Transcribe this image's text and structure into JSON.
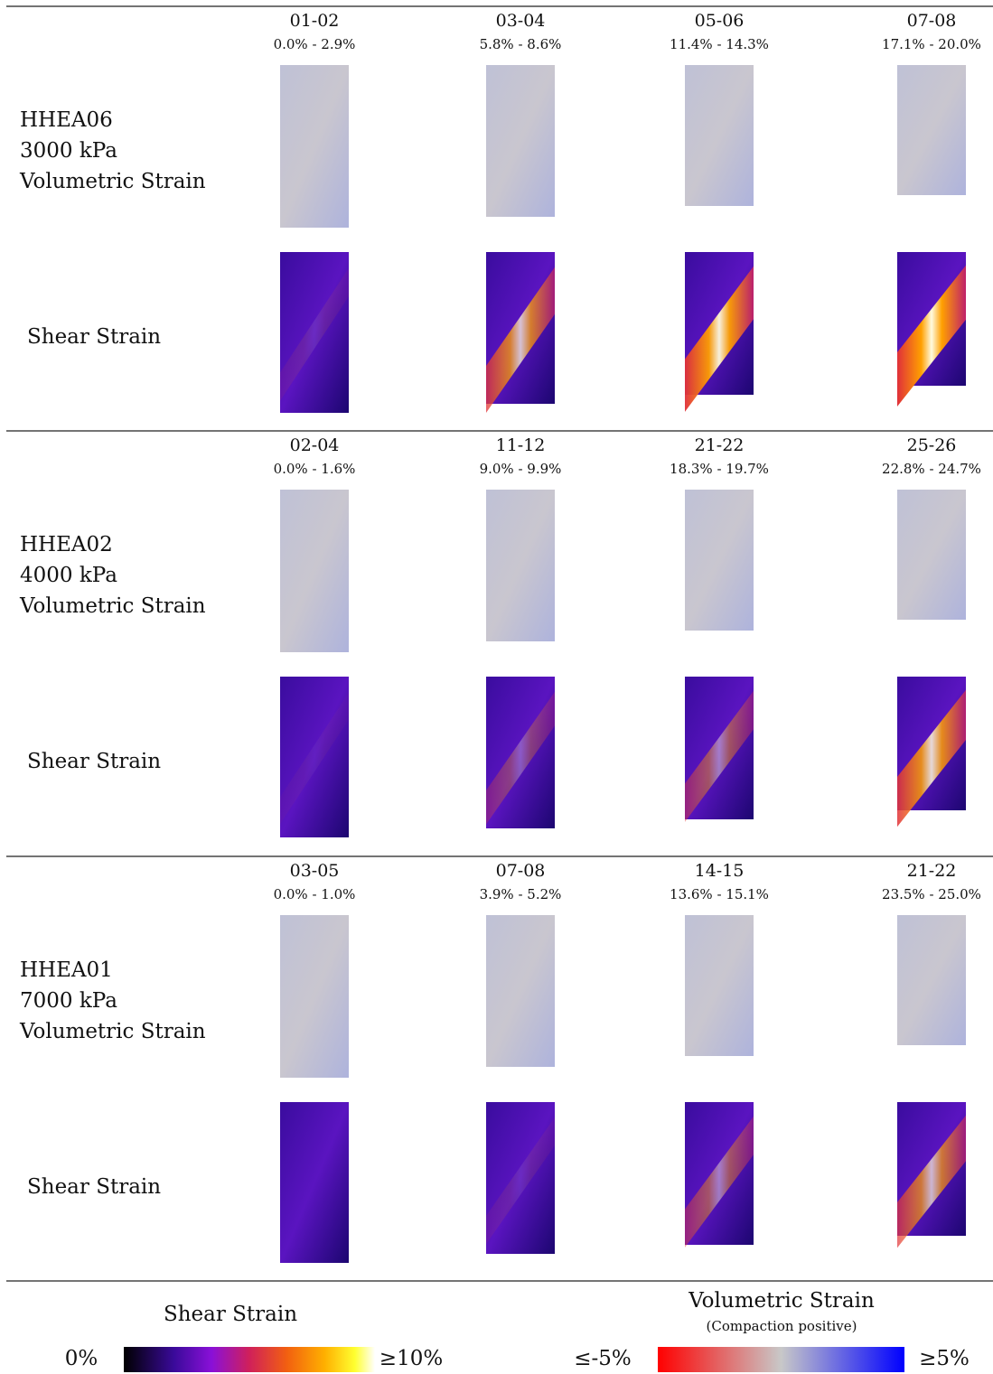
{
  "groups": [
    {
      "specimen": "HHEA06",
      "pressure": "3000 kPa",
      "volumetric_label": "Volumetric Strain",
      "shear_label": "Shear Strain",
      "columns": [
        {
          "increment": "01-02",
          "range": "0.0% - 2.9%"
        },
        {
          "increment": "03-04",
          "range": "5.8% - 8.6%"
        },
        {
          "increment": "05-06",
          "range": "11.4% - 14.3%"
        },
        {
          "increment": "07-08",
          "range": "17.1% - 20.0%"
        }
      ]
    },
    {
      "specimen": "HHEA02",
      "pressure": "4000 kPa",
      "volumetric_label": "Volumetric Strain",
      "shear_label": "Shear Strain",
      "columns": [
        {
          "increment": "02-04",
          "range": "0.0% - 1.6%"
        },
        {
          "increment": "11-12",
          "range": "9.0% - 9.9%"
        },
        {
          "increment": "21-22",
          "range": "18.3% - 19.7%"
        },
        {
          "increment": "25-26",
          "range": "22.8% - 24.7%"
        }
      ]
    },
    {
      "specimen": "HHEA01",
      "pressure": "7000 kPa",
      "volumetric_label": "Volumetric Strain",
      "shear_label": "Shear Strain",
      "columns": [
        {
          "increment": "03-05",
          "range": "0.0% - 1.0%"
        },
        {
          "increment": "07-08",
          "range": "3.9% - 5.2%"
        },
        {
          "increment": "14-15",
          "range": "13.6% - 15.1%"
        },
        {
          "increment": "21-22",
          "range": "23.5% - 25.0%"
        }
      ]
    }
  ],
  "legend": {
    "shear": {
      "title": "Shear Strain",
      "min": "0%",
      "max": "≥10%"
    },
    "volumetric": {
      "title": "Volumetric Strain",
      "note": "(Compaction positive)",
      "min": "≤-5%",
      "max": "≥5%"
    }
  }
}
